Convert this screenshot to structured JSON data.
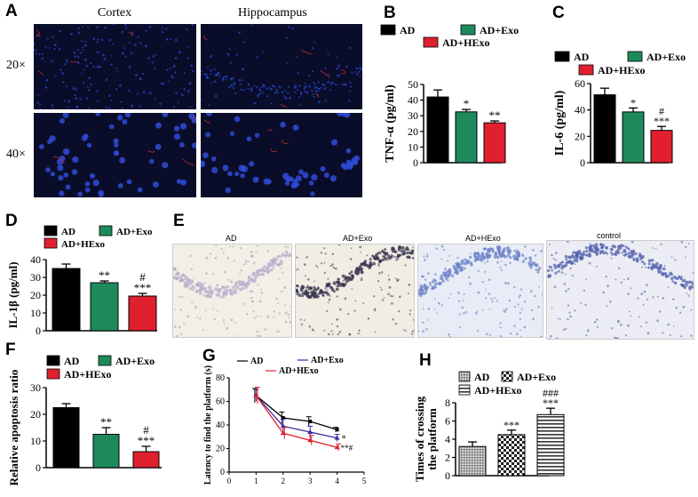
{
  "panels": {
    "A": {
      "letter": "A",
      "col_labels": [
        "Cortex",
        "Hippocampus"
      ],
      "row_labels": [
        "20×",
        "40×"
      ]
    },
    "B": {
      "letter": "B"
    },
    "C": {
      "letter": "C"
    },
    "D": {
      "letter": "D"
    },
    "E": {
      "letter": "E",
      "labels": [
        "AD",
        "AD+Exo",
        "AD+HExo",
        "control"
      ]
    },
    "F": {
      "letter": "F"
    },
    "G": {
      "letter": "G"
    },
    "H": {
      "letter": "H"
    }
  },
  "colors": {
    "AD": "#000000",
    "AD+Exo": "#1e8a5c",
    "AD+HExo": "#e0202e"
  },
  "chart_data": [
    {
      "id": "B",
      "type": "bar",
      "categories": [
        "AD",
        "AD+Exo",
        "AD+HExo"
      ],
      "values": [
        42,
        32.5,
        25.5
      ],
      "errors": [
        4.5,
        1.5,
        1.2
      ],
      "significance": [
        "",
        "*",
        "**"
      ],
      "legend": [
        "AD",
        "AD+Exo",
        "AD+HExo"
      ],
      "ylabel": "TNF-α  (pg/ml)",
      "ylim": [
        0,
        50
      ],
      "yticks": [
        "0",
        "10",
        "20",
        "30",
        "40",
        "50"
      ]
    },
    {
      "id": "C",
      "type": "bar",
      "categories": [
        "AD",
        "AD+Exo",
        "AD+HExo"
      ],
      "values": [
        51.5,
        38.5,
        24.5
      ],
      "errors": [
        5,
        3,
        3
      ],
      "significance": [
        "",
        "*",
        "#\n***"
      ],
      "legend": [
        "AD",
        "AD+Exo",
        "AD+HExo"
      ],
      "ylabel": "IL-6 (pg/ml)",
      "ylim": [
        0,
        60
      ],
      "yticks": [
        "0",
        "20",
        "40",
        "60"
      ]
    },
    {
      "id": "D",
      "type": "bar",
      "categories": [
        "AD",
        "AD+Exo",
        "AD+HExo"
      ],
      "values": [
        35,
        27,
        19.5
      ],
      "errors": [
        2.5,
        1,
        1.5
      ],
      "significance": [
        "",
        "**",
        "#\n***"
      ],
      "legend": [
        "AD",
        "AD+Exo",
        "AD+HExo"
      ],
      "ylabel": "IL-1β  (pg/ml)",
      "ylim": [
        0,
        40
      ],
      "yticks": [
        "0",
        "10",
        "20",
        "30",
        "40"
      ]
    },
    {
      "id": "F",
      "type": "bar",
      "categories": [
        "AD",
        "AD+Exo",
        "AD+HExo"
      ],
      "values": [
        22.5,
        12.5,
        6
      ],
      "errors": [
        1.5,
        2.5,
        2
      ],
      "significance": [
        "",
        "**",
        "#\n***"
      ],
      "legend": [
        "AD",
        "AD+Exo",
        "AD+HExo"
      ],
      "ylabel": "Relative apoptosis ratio",
      "ylim": [
        0,
        30
      ],
      "yticks": [
        "0",
        "10",
        "20",
        "30"
      ]
    },
    {
      "id": "G",
      "type": "line",
      "x": [
        1,
        2,
        3,
        4
      ],
      "series": [
        {
          "name": "AD",
          "values": [
            65,
            46,
            43,
            36
          ],
          "errors": [
            6,
            5,
            4,
            2
          ]
        },
        {
          "name": "AD+Exo",
          "values": [
            65,
            39,
            34,
            29
          ],
          "errors": [
            5,
            6,
            5,
            3
          ]
        },
        {
          "name": "AD+HExo",
          "values": [
            65,
            33,
            27,
            21
          ],
          "errors": [
            7,
            5,
            4,
            3
          ]
        }
      ],
      "significance": [
        "*",
        "**#"
      ],
      "xlabel": "",
      "ylabel": "Latency to find the platform (s)",
      "xlim": [
        0,
        5
      ],
      "ylim": [
        0,
        80
      ],
      "xticks": [
        "0",
        "1",
        "2",
        "3",
        "4",
        "5"
      ],
      "yticks": [
        "0",
        "20",
        "40",
        "60",
        "80"
      ]
    },
    {
      "id": "H",
      "type": "bar",
      "categories": [
        "AD",
        "AD+Exo",
        "AD+HExo"
      ],
      "values": [
        3.2,
        4.5,
        6.7
      ],
      "errors": [
        0.5,
        0.5,
        0.7
      ],
      "significance": [
        "",
        "***",
        "###\n***"
      ],
      "legend": [
        "AD",
        "AD+Exo",
        "AD+HExo"
      ],
      "ylabel": "Times of crossing the platform",
      "ylim": [
        0,
        8
      ],
      "yticks": [
        "0",
        "2",
        "4",
        "6",
        "8"
      ]
    }
  ]
}
